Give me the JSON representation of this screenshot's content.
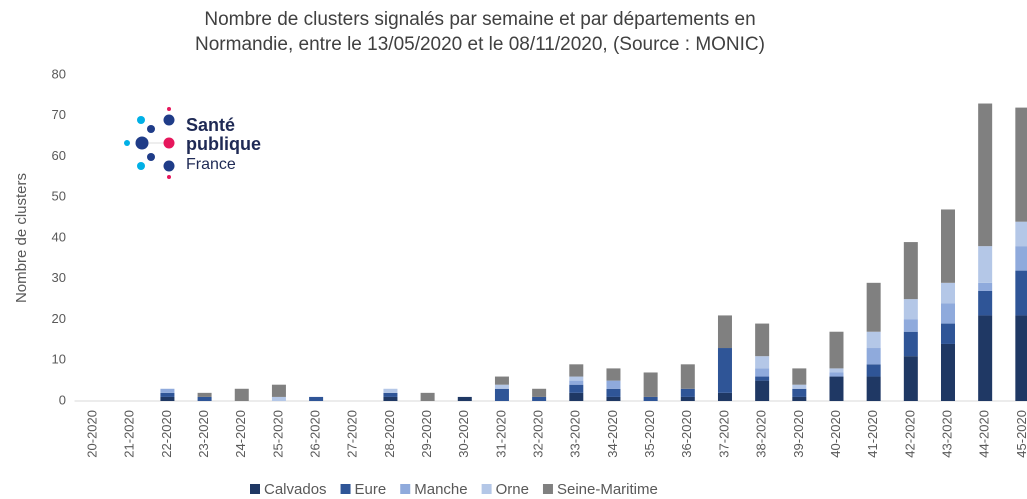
{
  "chart_data": {
    "type": "stacked_bar",
    "title_lines": [
      "Nombre de clusters signalés par semaine et par départements en",
      "Normandie, entre le 13/05/2020 et le 08/11/2020, (Source : MONIC)"
    ],
    "y_label": "Nombre de clusters",
    "logo": {
      "line1": "Santé",
      "line2": "publique",
      "line3": "France"
    },
    "categories": [
      "20-2020",
      "21-2020",
      "22-2020",
      "23-2020",
      "24-2020",
      "25-2020",
      "26-2020",
      "27-2020",
      "28-2020",
      "29-2020",
      "30-2020",
      "31-2020",
      "32-2020",
      "33-2020",
      "34-2020",
      "35-2020",
      "36-2020",
      "37-2020",
      "38-2020",
      "39-2020",
      "40-2020",
      "41-2020",
      "42-2020",
      "43-2020",
      "44-2020",
      "45-2020"
    ],
    "series": [
      {
        "name": "Calvados",
        "color": "#1f3864",
        "values": [
          0,
          0,
          1,
          0,
          0,
          0,
          0,
          0,
          1,
          0,
          1,
          0,
          0,
          2,
          1,
          0,
          1,
          2,
          5,
          1,
          6,
          6,
          11,
          14,
          21,
          21
        ]
      },
      {
        "name": "Eure",
        "color": "#2f5597",
        "values": [
          0,
          0,
          1,
          1,
          0,
          0,
          1,
          0,
          1,
          0,
          0,
          3,
          1,
          2,
          2,
          1,
          2,
          11,
          1,
          2,
          0,
          3,
          6,
          5,
          6,
          11
        ]
      },
      {
        "name": "Manche",
        "color": "#8faadc",
        "values": [
          0,
          0,
          1,
          0,
          0,
          0,
          0,
          0,
          0,
          0,
          0,
          0,
          0,
          1,
          2,
          0,
          0,
          0,
          2,
          0,
          1,
          4,
          3,
          5,
          2,
          6
        ]
      },
      {
        "name": "Orne",
        "color": "#b4c7e7",
        "values": [
          0,
          0,
          0,
          0,
          0,
          1,
          0,
          0,
          1,
          0,
          0,
          1,
          0,
          1,
          0,
          0,
          0,
          0,
          3,
          1,
          1,
          4,
          5,
          5,
          9,
          6
        ]
      },
      {
        "name": "Seine-Maritime",
        "color": "#808080",
        "values": [
          0,
          0,
          0,
          1,
          3,
          3,
          0,
          0,
          0,
          2,
          0,
          2,
          2,
          3,
          3,
          6,
          6,
          8,
          8,
          4,
          9,
          12,
          14,
          18,
          35,
          28
        ]
      }
    ],
    "ylim": [
      0,
      80
    ],
    "yticks": [
      0,
      10,
      20,
      30,
      40,
      50,
      60,
      70,
      80
    ]
  }
}
